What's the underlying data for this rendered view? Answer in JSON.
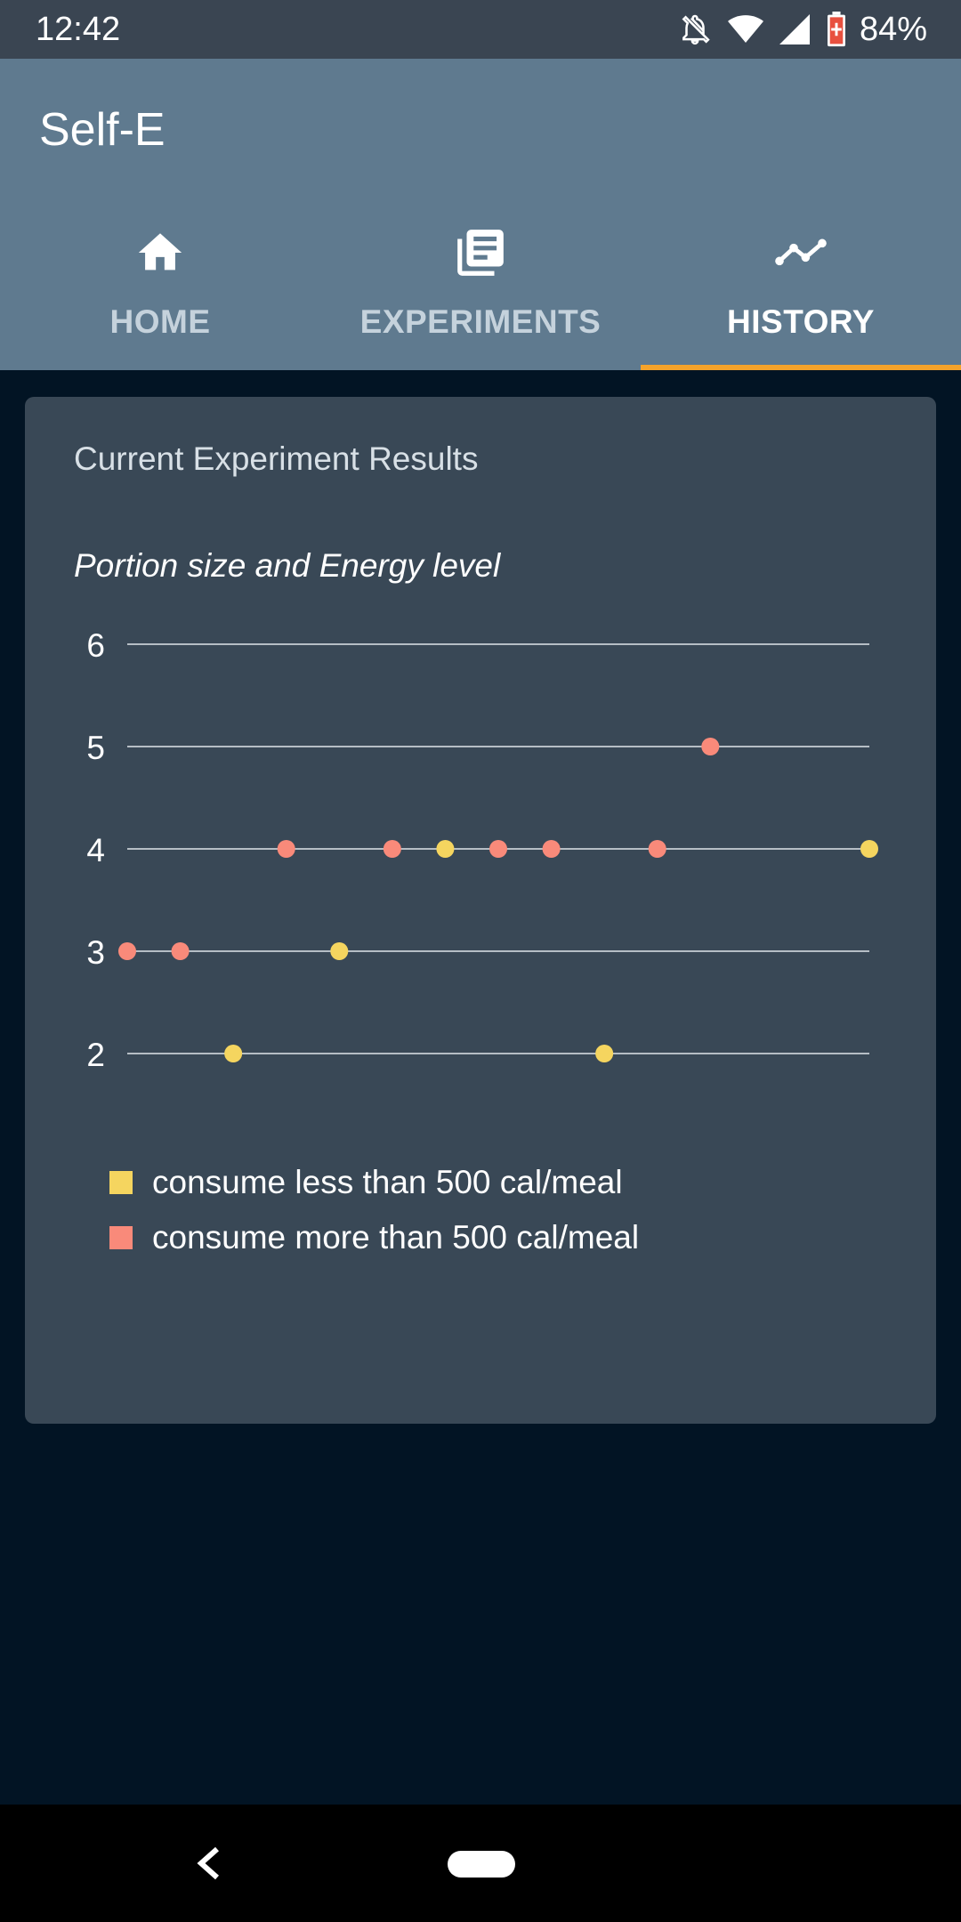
{
  "status_bar": {
    "time": "12:42",
    "battery": "84%",
    "icons": [
      "notifications-off-icon",
      "wifi-icon",
      "signal-icon",
      "battery-icon"
    ]
  },
  "app": {
    "title": "Self-E"
  },
  "tabs": [
    {
      "label": "HOME",
      "icon": "home-icon",
      "active": false
    },
    {
      "label": "EXPERIMENTS",
      "icon": "library-icon",
      "active": false
    },
    {
      "label": "HISTORY",
      "icon": "timeline-icon",
      "active": true
    }
  ],
  "card": {
    "title": "Current Experiment Results"
  },
  "chart_data": {
    "type": "scatter",
    "title": "Portion size and Energy level",
    "xlabel": "",
    "ylabel": "",
    "ylim": [
      2,
      6
    ],
    "yticks": [
      6,
      5,
      4,
      3,
      2
    ],
    "grid": true,
    "legend_position": "bottom",
    "x": [
      1,
      2,
      3,
      4,
      5,
      6,
      7,
      8,
      9,
      10,
      11,
      12,
      13,
      14,
      15
    ],
    "series": [
      {
        "name": "consume less than 500 cal/meal",
        "color": "#f5d55f",
        "points": [
          [
            3,
            2
          ],
          [
            5,
            3
          ],
          [
            7,
            4
          ],
          [
            10,
            2
          ],
          [
            15,
            4
          ]
        ]
      },
      {
        "name": "consume more than 500 cal/meal",
        "color": "#f98a7a",
        "points": [
          [
            1,
            3
          ],
          [
            2,
            3
          ],
          [
            4,
            4
          ],
          [
            6,
            4
          ],
          [
            8,
            4
          ],
          [
            9,
            4
          ],
          [
            11,
            4
          ],
          [
            12,
            5
          ]
        ]
      }
    ]
  },
  "legend": [
    {
      "label": "consume less than 500 cal/meal",
      "color": "#f5d55f"
    },
    {
      "label": "consume more than 500 cal/meal",
      "color": "#f98a7a"
    }
  ]
}
